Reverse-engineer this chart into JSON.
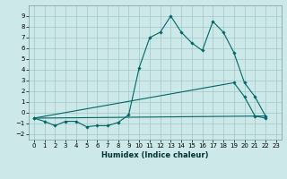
{
  "xlabel": "Humidex (Indice chaleur)",
  "bg_color": "#cce8e8",
  "grid_color": "#aacccc",
  "line_color": "#006666",
  "ylim": [
    -2.5,
    10
  ],
  "xlim": [
    -0.5,
    23.5
  ],
  "yticks": [
    -2,
    -1,
    0,
    1,
    2,
    3,
    4,
    5,
    6,
    7,
    8,
    9
  ],
  "xticks": [
    0,
    1,
    2,
    3,
    4,
    5,
    6,
    7,
    8,
    9,
    10,
    11,
    12,
    13,
    14,
    15,
    16,
    17,
    18,
    19,
    20,
    21,
    22,
    23
  ],
  "line1_x": [
    0,
    1,
    2,
    3,
    4,
    5,
    6,
    7,
    8,
    9,
    10,
    11,
    12,
    13,
    14,
    15,
    16,
    17,
    18,
    19,
    20,
    21,
    22
  ],
  "line1_y": [
    -0.5,
    -0.8,
    -1.2,
    -0.8,
    -0.8,
    -1.3,
    -1.2,
    -1.2,
    -0.9,
    -0.2,
    4.2,
    7.0,
    7.5,
    9.0,
    7.5,
    6.5,
    5.8,
    8.5,
    7.5,
    5.6,
    2.8,
    1.5,
    -0.3
  ],
  "line2_x": [
    0,
    19,
    20,
    21,
    22
  ],
  "line2_y": [
    -0.5,
    2.8,
    1.5,
    -0.3,
    -0.5
  ],
  "line3_x": [
    0,
    22
  ],
  "line3_y": [
    -0.5,
    -0.3
  ]
}
